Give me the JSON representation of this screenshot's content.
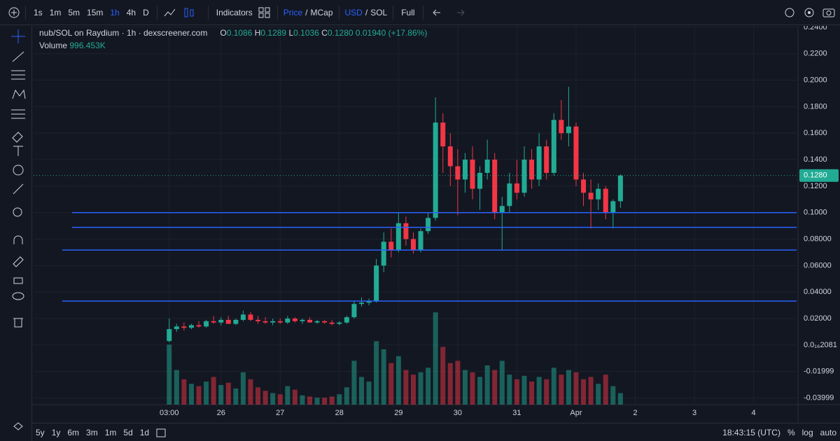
{
  "ui": {
    "intervals": [
      "1s",
      "1m",
      "5m",
      "15m",
      "1h",
      "4h",
      "D"
    ],
    "indicators": "Indicators",
    "price": "Price",
    "slash1": "/",
    "mcap": "MCap",
    "usd": "USD",
    "slash2": "/",
    "sol": "SOL",
    "full": "Full",
    "title": "nub/SOL on Raydium · 1h · dexscreener.com",
    "ohlc": {
      "o_label": "O",
      "o": "0.1086",
      "h_label": "H",
      "h": "0.1289",
      "l_label": "L",
      "l": "0.1036",
      "c_label": "C",
      "c": "0.1280",
      "change": "0.01940 (+17.86%)"
    },
    "volume_label": "Volume",
    "volume_value": "996.453K",
    "ranges": [
      "5y",
      "1y",
      "6m",
      "3m",
      "1m",
      "5d",
      "1d"
    ],
    "clock": "18:43:15 (UTC)",
    "percent": "%",
    "log": "log",
    "auto": "auto"
  },
  "chart_data": {
    "type": "candlestick",
    "up_color": "#22ab94",
    "down_color": "#f23645",
    "line_color": "#2962ff",
    "x": [
      3,
      6,
      9,
      12,
      15,
      18,
      21,
      24,
      27,
      30,
      33,
      36,
      39,
      42,
      45,
      48,
      51,
      54,
      57,
      60,
      63,
      66,
      69,
      72,
      75,
      78,
      81,
      84,
      87,
      90,
      93,
      96,
      99,
      102,
      105,
      108,
      111,
      114,
      117,
      120,
      123,
      126,
      129,
      132,
      135,
      138,
      141,
      144,
      147,
      150,
      153,
      156,
      159,
      162,
      165,
      168,
      171,
      174,
      177,
      180,
      183,
      186
    ],
    "open": [
      0.003,
      0.012,
      0.014,
      0.013,
      0.015,
      0.014,
      0.018,
      0.017,
      0.019,
      0.016,
      0.019,
      0.023,
      0.019,
      0.018,
      0.017,
      0.018,
      0.017,
      0.02,
      0.018,
      0.019,
      0.017,
      0.018,
      0.017,
      0.016,
      0.017,
      0.021,
      0.031,
      0.032,
      0.033,
      0.06,
      0.078,
      0.072,
      0.092,
      0.08,
      0.072,
      0.086,
      0.096,
      0.168,
      0.15,
      0.135,
      0.125,
      0.14,
      0.118,
      0.13,
      0.14,
      0.1,
      0.105,
      0.122,
      0.115,
      0.14,
      0.125,
      0.15,
      0.13,
      0.17,
      0.16,
      0.165,
      0.125,
      0.115,
      0.11,
      0.118,
      0.1,
      0.1086
    ],
    "high": [
      0.02,
      0.016,
      0.017,
      0.016,
      0.018,
      0.019,
      0.022,
      0.021,
      0.022,
      0.02,
      0.026,
      0.025,
      0.022,
      0.021,
      0.02,
      0.02,
      0.022,
      0.021,
      0.02,
      0.021,
      0.019,
      0.019,
      0.019,
      0.018,
      0.022,
      0.033,
      0.036,
      0.035,
      0.065,
      0.085,
      0.088,
      0.1,
      0.097,
      0.085,
      0.088,
      0.1,
      0.187,
      0.175,
      0.16,
      0.148,
      0.145,
      0.15,
      0.135,
      0.155,
      0.145,
      0.112,
      0.13,
      0.14,
      0.15,
      0.148,
      0.16,
      0.155,
      0.175,
      0.185,
      0.195,
      0.168,
      0.13,
      0.125,
      0.122,
      0.12,
      0.11,
      0.1289
    ],
    "low": [
      0.002,
      0.01,
      0.011,
      0.012,
      0.013,
      0.013,
      0.016,
      0.015,
      0.016,
      0.015,
      0.018,
      0.018,
      0.016,
      0.016,
      0.015,
      0.016,
      0.016,
      0.017,
      0.016,
      0.017,
      0.016,
      0.016,
      0.015,
      0.015,
      0.016,
      0.02,
      0.029,
      0.03,
      0.032,
      0.055,
      0.066,
      0.07,
      0.075,
      0.069,
      0.07,
      0.084,
      0.094,
      0.13,
      0.12,
      0.098,
      0.115,
      0.11,
      0.102,
      0.125,
      0.095,
      0.072,
      0.1,
      0.11,
      0.112,
      0.118,
      0.12,
      0.125,
      0.128,
      0.155,
      0.15,
      0.12,
      0.105,
      0.088,
      0.102,
      0.095,
      0.088,
      0.1036
    ],
    "close": [
      0.012,
      0.014,
      0.013,
      0.015,
      0.014,
      0.018,
      0.017,
      0.019,
      0.016,
      0.019,
      0.023,
      0.019,
      0.018,
      0.017,
      0.018,
      0.017,
      0.02,
      0.018,
      0.019,
      0.017,
      0.018,
      0.017,
      0.016,
      0.017,
      0.021,
      0.031,
      0.032,
      0.033,
      0.06,
      0.078,
      0.072,
      0.092,
      0.08,
      0.072,
      0.086,
      0.096,
      0.168,
      0.15,
      0.135,
      0.125,
      0.14,
      0.118,
      0.13,
      0.14,
      0.1,
      0.105,
      0.122,
      0.115,
      0.14,
      0.125,
      0.15,
      0.13,
      0.17,
      0.16,
      0.165,
      0.125,
      0.115,
      0.11,
      0.118,
      0.1,
      0.1086,
      0.128
    ],
    "volume": [
      5200000,
      3000000,
      2200000,
      1800000,
      1600000,
      2000000,
      2400000,
      1700000,
      1900000,
      1400000,
      2800000,
      2200000,
      1500000,
      1200000,
      1000000,
      900000,
      1600000,
      1300000,
      800000,
      700000,
      600000,
      600000,
      700000,
      900000,
      1500000,
      3800000,
      2400000,
      2000000,
      5500000,
      4800000,
      3600000,
      4200000,
      3000000,
      2600000,
      2800000,
      3200000,
      8000000,
      5000000,
      3600000,
      3800000,
      3000000,
      2800000,
      2400000,
      3400000,
      3000000,
      3800000,
      2600000,
      2200000,
      2500000,
      2000000,
      2400000,
      2200000,
      3200000,
      2600000,
      3000000,
      2800000,
      2200000,
      2400000,
      1800000,
      2600000,
      1600000,
      996453
    ],
    "volume_lim": [
      0,
      8500000
    ],
    "xlim": [
      -52,
      258
    ],
    "xticks": [
      {
        "value": 3,
        "label": "03:00"
      },
      {
        "value": 24,
        "label": "26"
      },
      {
        "value": 48,
        "label": "27"
      },
      {
        "value": 72,
        "label": "28"
      },
      {
        "value": 96,
        "label": "29"
      },
      {
        "value": 120,
        "label": "30"
      },
      {
        "value": 144,
        "label": "31"
      },
      {
        "value": 168,
        "label": "Apr"
      },
      {
        "value": 192,
        "label": "2"
      },
      {
        "value": 216,
        "label": "3"
      },
      {
        "value": 240,
        "label": "4"
      }
    ],
    "ylim": [
      -0.045,
      0.241
    ],
    "yticks": [
      {
        "value": 0.24,
        "label": "0.2400"
      },
      {
        "value": 0.22,
        "label": "0.2200"
      },
      {
        "value": 0.2,
        "label": "0.2000"
      },
      {
        "value": 0.18,
        "label": "0.1800"
      },
      {
        "value": 0.16,
        "label": "0.1600"
      },
      {
        "value": 0.14,
        "label": "0.1400"
      },
      {
        "value": 0.12,
        "label": "0.1200"
      },
      {
        "value": 0.1,
        "label": "0.1000"
      },
      {
        "value": 0.08,
        "label": "0.08000"
      },
      {
        "value": 0.06,
        "label": "0.06000"
      },
      {
        "value": 0.04,
        "label": "0.04000"
      },
      {
        "value": 0.02,
        "label": "0.02000"
      },
      {
        "value": 2.081e-17,
        "label": "0.0₁₆2081"
      },
      -0.01999,
      -0.03999
    ],
    "grid": true,
    "horizontal_lines": [
      0.1,
      0.0889,
      0.0717,
      0.0332
    ],
    "last_price": {
      "value": 0.128,
      "label": "0.1280"
    }
  }
}
